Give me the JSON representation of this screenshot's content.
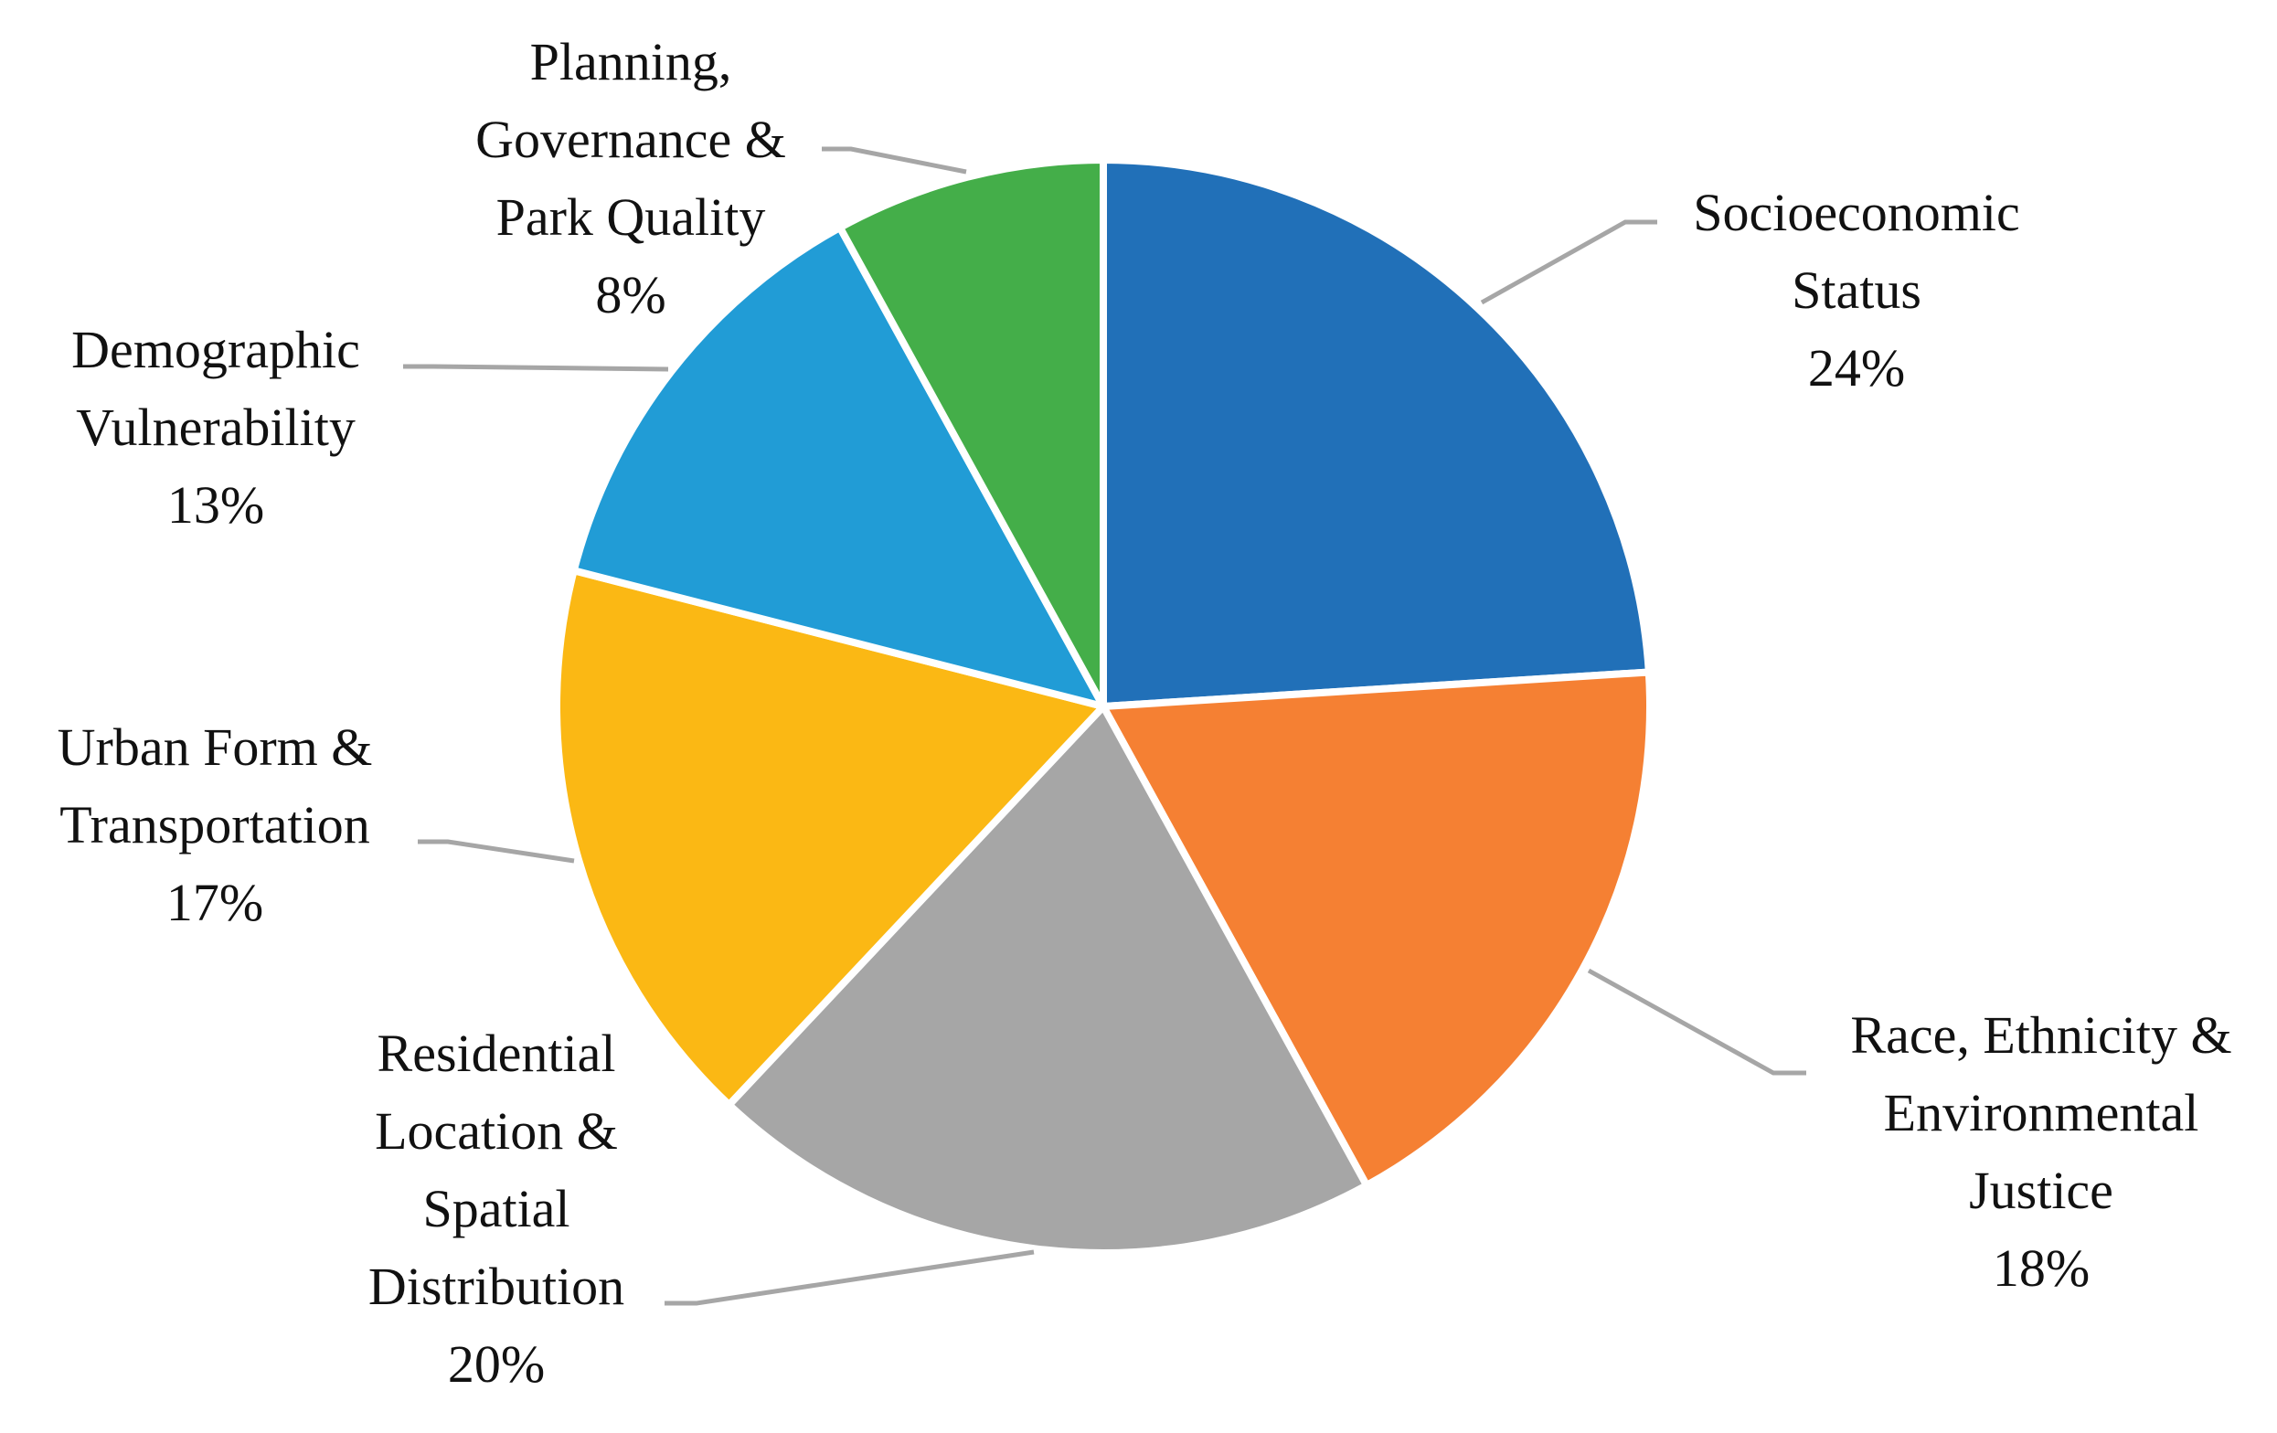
{
  "chart_data": {
    "type": "pie",
    "categories": [
      "Socioeconomic Status",
      "Race, Ethnicity & Environmental Justice",
      "Residential Location & Spatial Distribution",
      "Urban Form & Transportation",
      "Demographic Vulnerability",
      "Planning, Governance & Park Quality"
    ],
    "values": [
      24,
      18,
      20,
      17,
      13,
      8
    ],
    "value_labels": [
      "24%",
      "18%",
      "20%",
      "17%",
      "13%",
      "8%"
    ],
    "colors": [
      "#2170b8",
      "#f58033",
      "#a6a6a6",
      "#fbb814",
      "#219cd6",
      "#44ae49"
    ]
  }
}
